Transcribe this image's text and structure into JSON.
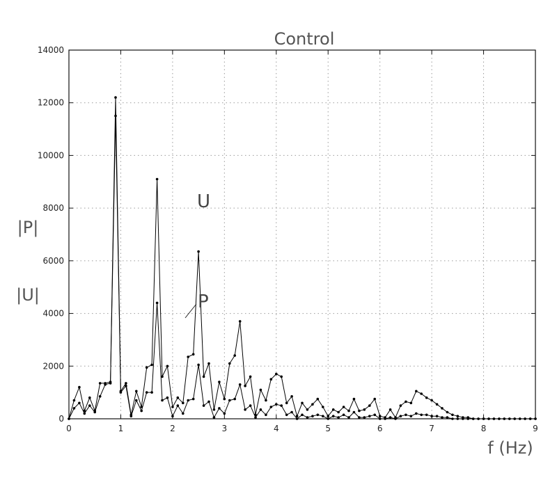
{
  "chart_data": {
    "type": "line",
    "title": "Control",
    "xlabel": "f (Hz)",
    "ylabel_lines": [
      "|P|",
      "|U|"
    ],
    "xlim": [
      0,
      9
    ],
    "ylim": [
      0,
      14000
    ],
    "xticks": [
      0,
      1,
      2,
      3,
      4,
      5,
      6,
      7,
      8,
      9
    ],
    "yticks": [
      0,
      2000,
      4000,
      6000,
      8000,
      10000,
      12000,
      14000
    ],
    "grid": true,
    "series": [
      {
        "name": "U",
        "x": [
          0,
          0.1,
          0.2,
          0.3,
          0.4,
          0.5,
          0.6,
          0.7,
          0.8,
          0.9,
          1.0,
          1.1,
          1.2,
          1.3,
          1.4,
          1.5,
          1.6,
          1.7,
          1.8,
          1.9,
          2.0,
          2.1,
          2.2,
          2.3,
          2.4,
          2.5,
          2.6,
          2.7,
          2.8,
          2.9,
          3.0,
          3.1,
          3.2,
          3.3,
          3.4,
          3.5,
          3.6,
          3.7,
          3.8,
          3.9,
          4.0,
          4.1,
          4.2,
          4.3,
          4.4,
          4.5,
          4.6,
          4.7,
          4.8,
          4.9,
          5.0,
          5.1,
          5.2,
          5.3,
          5.4,
          5.5,
          5.6,
          5.7,
          5.8,
          5.9,
          6.0,
          6.1,
          6.2,
          6.3,
          6.4,
          6.5,
          6.6,
          6.7,
          6.8,
          6.9,
          7.0,
          7.1,
          7.2,
          7.3,
          7.4,
          7.5,
          7.6,
          7.7,
          7.8,
          7.9,
          8.0,
          8.1,
          8.2,
          8.3,
          8.4,
          8.5,
          8.6,
          8.7,
          8.8,
          8.9,
          9.0
        ],
        "values": [
          0,
          700,
          1200,
          300,
          800,
          300,
          1350,
          1350,
          1400,
          12200,
          1050,
          1350,
          150,
          1050,
          450,
          1950,
          2050,
          9100,
          1600,
          2000,
          450,
          800,
          600,
          2350,
          2450,
          6350,
          1600,
          2100,
          350,
          1400,
          750,
          2100,
          2400,
          3700,
          1250,
          1600,
          150,
          1100,
          700,
          1500,
          1700,
          1600,
          600,
          850,
          100,
          600,
          350,
          550,
          750,
          450,
          100,
          350,
          250,
          450,
          300,
          750,
          300,
          350,
          500,
          750,
          100,
          50,
          350,
          50,
          500,
          650,
          600,
          1050,
          950,
          800,
          700,
          550,
          400,
          250,
          150,
          100,
          50,
          50,
          0,
          0,
          0,
          0,
          0,
          0,
          0,
          0,
          0,
          0,
          0,
          0,
          0
        ]
      },
      {
        "name": "P",
        "x": [
          0,
          0.1,
          0.2,
          0.3,
          0.4,
          0.5,
          0.6,
          0.7,
          0.8,
          0.9,
          1.0,
          1.1,
          1.2,
          1.3,
          1.4,
          1.5,
          1.6,
          1.7,
          1.8,
          1.9,
          2.0,
          2.1,
          2.2,
          2.3,
          2.4,
          2.5,
          2.6,
          2.7,
          2.8,
          2.9,
          3.0,
          3.1,
          3.2,
          3.3,
          3.4,
          3.5,
          3.6,
          3.7,
          3.8,
          3.9,
          4.0,
          4.1,
          4.2,
          4.3,
          4.4,
          4.5,
          4.6,
          4.7,
          4.8,
          4.9,
          5.0,
          5.1,
          5.2,
          5.3,
          5.4,
          5.5,
          5.6,
          5.7,
          5.8,
          5.9,
          6.0,
          6.1,
          6.2,
          6.3,
          6.4,
          6.5,
          6.6,
          6.7,
          6.8,
          6.9,
          7.0,
          7.1,
          7.2,
          7.3,
          7.4,
          7.5,
          7.6,
          7.7,
          7.8,
          7.9,
          8.0,
          8.1,
          8.2,
          8.3,
          8.4,
          8.5,
          8.6,
          8.7,
          8.8,
          8.9,
          9.0
        ],
        "values": [
          0,
          400,
          600,
          200,
          500,
          250,
          850,
          1300,
          1350,
          11500,
          1000,
          1250,
          100,
          700,
          300,
          1000,
          1000,
          4400,
          700,
          800,
          100,
          500,
          200,
          700,
          750,
          2050,
          500,
          650,
          50,
          400,
          200,
          700,
          750,
          1300,
          350,
          500,
          50,
          350,
          150,
          450,
          550,
          500,
          150,
          250,
          0,
          150,
          50,
          100,
          150,
          100,
          0,
          100,
          50,
          150,
          50,
          250,
          50,
          50,
          100,
          150,
          0,
          0,
          50,
          0,
          100,
          150,
          100,
          200,
          150,
          150,
          100,
          100,
          50,
          50,
          0,
          0,
          0,
          0,
          0,
          0,
          0,
          0,
          0,
          0,
          0,
          0,
          0,
          0,
          0,
          0,
          0
        ]
      }
    ],
    "annotations": [
      "U",
      "P"
    ]
  },
  "colors": {
    "line": "#000000",
    "grid": "#9a9a9a",
    "text": "#555555"
  }
}
